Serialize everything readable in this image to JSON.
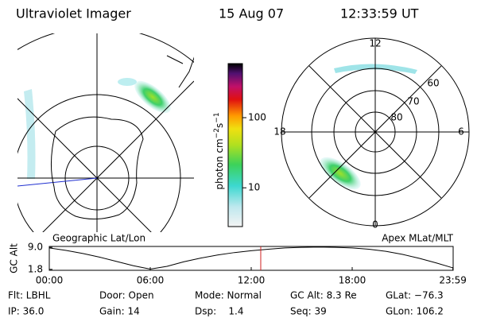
{
  "header": {
    "title": "Ultraviolet Imager",
    "date": "15 Aug 07",
    "time": "12:33:59 UT"
  },
  "map": {
    "title": "Geographic Lat/Lon"
  },
  "polar": {
    "title": "Apex MLat/MLT",
    "labels": [
      "12",
      "18",
      "6",
      "0",
      "60",
      "70",
      "80"
    ]
  },
  "colorbar": {
    "label": "photon cm",
    "sup1": "−2",
    "mid": "s",
    "sup2": "−1",
    "log": true,
    "ylim": [
      2.8,
      590
    ],
    "yticks": [
      10,
      100
    ]
  },
  "altitude_plot": {
    "ylabel": "GC Alt",
    "xlim": [
      0,
      24
    ],
    "ylim": [
      1.5,
      9.3
    ],
    "yticks": [
      {
        "value": 1.8,
        "label": "1.8"
      },
      {
        "value": 9,
        "label": "9.0"
      }
    ],
    "xticks": [
      {
        "value": 0,
        "label": "00:00"
      },
      {
        "value": 6,
        "label": "06:00"
      },
      {
        "value": 12,
        "label": "12:00"
      },
      {
        "value": 18,
        "label": "18:00"
      },
      {
        "value": 23.983,
        "label": "23:59"
      }
    ],
    "x": [
      0,
      1,
      2,
      3,
      4,
      5,
      6,
      7,
      8,
      9,
      10,
      11,
      12,
      13,
      14,
      15,
      16,
      17,
      18,
      19,
      20,
      21,
      22,
      23,
      23.983
    ],
    "values": [
      8.8,
      8.0,
      7.0,
      5.8,
      4.4,
      3.0,
      1.9,
      2.8,
      4.3,
      5.5,
      6.5,
      7.3,
      7.9,
      8.4,
      8.8,
      9.0,
      9.1,
      9.0,
      8.8,
      8.4,
      7.7,
      6.7,
      5.4,
      3.9,
      2.3
    ],
    "marker_x": 12.566
  },
  "info": {
    "rows": [
      [
        "Flt: LBHL",
        "Door: Open",
        "Mode: Normal",
        "GC Alt: 8.3 Re",
        "GLat: −76.3"
      ],
      [
        "IP: 36.0",
        "Gain: 14",
        "Dsp:    1.4",
        "Seq: 39",
        "GLon: 106.2"
      ]
    ]
  }
}
